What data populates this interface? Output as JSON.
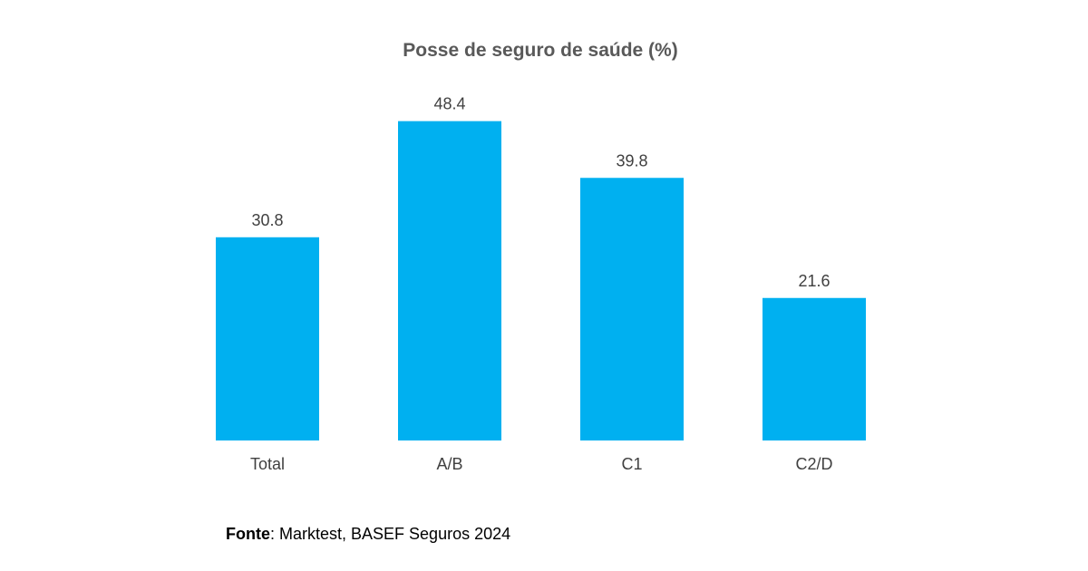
{
  "chart_data": {
    "type": "bar",
    "title": "Posse de seguro de saúde (%)",
    "xlabel": "",
    "ylabel": "",
    "categories": [
      "Total",
      "A/B",
      "C1",
      "C2/D"
    ],
    "values": [
      30.8,
      48.4,
      39.8,
      21.6
    ],
    "value_labels": [
      "30.8",
      "48.4",
      "39.8",
      "21.6"
    ],
    "ylim": [
      0,
      50
    ],
    "grid": false,
    "legend": "none",
    "bar_color": "#00B0F0",
    "text_color": "#404040",
    "title_color": "#595959"
  },
  "source": {
    "label": "Fonte",
    "text": ": Marktest, BASEF Seguros 2024"
  }
}
